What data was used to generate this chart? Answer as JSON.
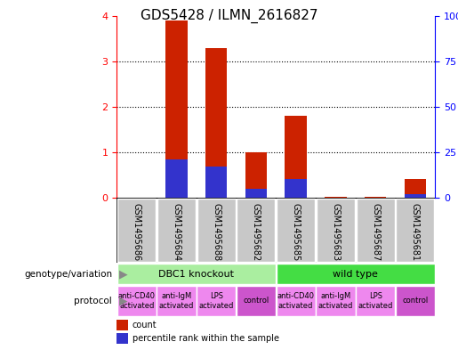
{
  "title": "GDS5428 / ILMN_2616827",
  "samples": [
    "GSM1495686",
    "GSM1495684",
    "GSM1495688",
    "GSM1495682",
    "GSM1495685",
    "GSM1495683",
    "GSM1495687",
    "GSM1495681"
  ],
  "count_values": [
    0.0,
    3.9,
    3.28,
    1.0,
    1.8,
    0.02,
    0.02,
    0.42
  ],
  "percentile_values": [
    0.0,
    0.85,
    0.68,
    0.2,
    0.42,
    0.0,
    0.0,
    0.08
  ],
  "ylim_left": [
    0,
    4
  ],
  "ylim_right": [
    0,
    100
  ],
  "yticks_left": [
    0,
    1,
    2,
    3,
    4
  ],
  "yticks_right": [
    0,
    25,
    50,
    75,
    100
  ],
  "ytick_labels_right": [
    "0",
    "25",
    "50",
    "75",
    "100%"
  ],
  "count_color": "#cc2200",
  "percentile_color": "#3333cc",
  "bg_color": "#ffffff",
  "genotype_groups": [
    {
      "label": "DBC1 knockout",
      "start": 0,
      "end": 4,
      "color": "#aaeea0"
    },
    {
      "label": "wild type",
      "start": 4,
      "end": 8,
      "color": "#44dd44"
    }
  ],
  "protocol_groups": [
    {
      "label": "anti-CD40\nactivated",
      "start": 0,
      "end": 1,
      "color": "#ee88ee"
    },
    {
      "label": "anti-IgM\nactivated",
      "start": 1,
      "end": 2,
      "color": "#ee88ee"
    },
    {
      "label": "LPS\nactivated",
      "start": 2,
      "end": 3,
      "color": "#ee88ee"
    },
    {
      "label": "control",
      "start": 3,
      "end": 4,
      "color": "#cc55cc"
    },
    {
      "label": "anti-CD40\nactivated",
      "start": 4,
      "end": 5,
      "color": "#ee88ee"
    },
    {
      "label": "anti-IgM\nactivated",
      "start": 5,
      "end": 6,
      "color": "#ee88ee"
    },
    {
      "label": "LPS\nactivated",
      "start": 6,
      "end": 7,
      "color": "#ee88ee"
    },
    {
      "label": "control",
      "start": 7,
      "end": 8,
      "color": "#cc55cc"
    }
  ],
  "sample_bg_color": "#c8c8c8",
  "label_fontsize": 8,
  "tick_fontsize": 8,
  "title_fontsize": 11,
  "outer_border_color": "#999999"
}
